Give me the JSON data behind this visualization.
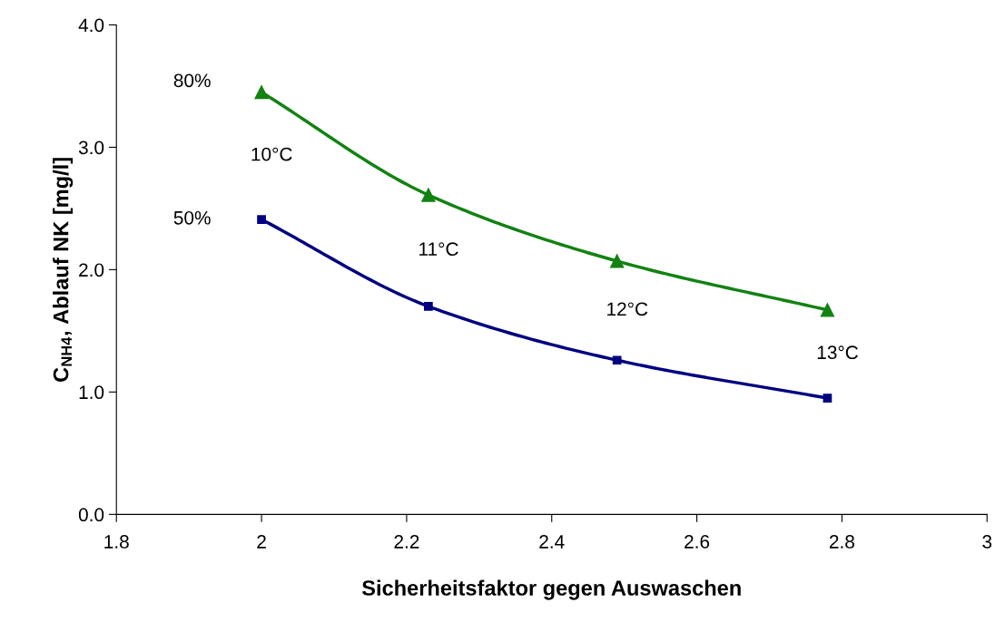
{
  "chart_data": {
    "type": "line",
    "xlabel": "Sicherheitsfaktor gegen Auswaschen",
    "ylabel": "C$_{NH4}$, Ablauf NK [mg/l]",
    "x": [
      2.0,
      2.23,
      2.49,
      2.78
    ],
    "series": [
      {
        "name": "80%",
        "color": "#138213",
        "marker": "triangle",
        "values": [
          3.45,
          2.61,
          2.07,
          1.67
        ]
      },
      {
        "name": "50%",
        "color": "#000080",
        "marker": "square",
        "values": [
          2.41,
          1.7,
          1.26,
          0.95
        ]
      }
    ],
    "xlim": [
      1.8,
      3
    ],
    "xticks": [
      1.8,
      2,
      2.2,
      2.4,
      2.6,
      2.8,
      3
    ],
    "ylim": [
      0,
      4
    ],
    "yticks": [
      {
        "value": 0,
        "label": "0.0"
      },
      {
        "value": 1,
        "label": "1.0"
      },
      {
        "value": 2,
        "label": "2.0"
      },
      {
        "value": 3,
        "label": "3.0"
      },
      {
        "value": 4,
        "label": "4.0"
      }
    ],
    "grid": false,
    "legend": false,
    "line_style": "solid",
    "annotations": [
      "10°C",
      "11°C",
      "12°C",
      "13°C"
    ]
  }
}
